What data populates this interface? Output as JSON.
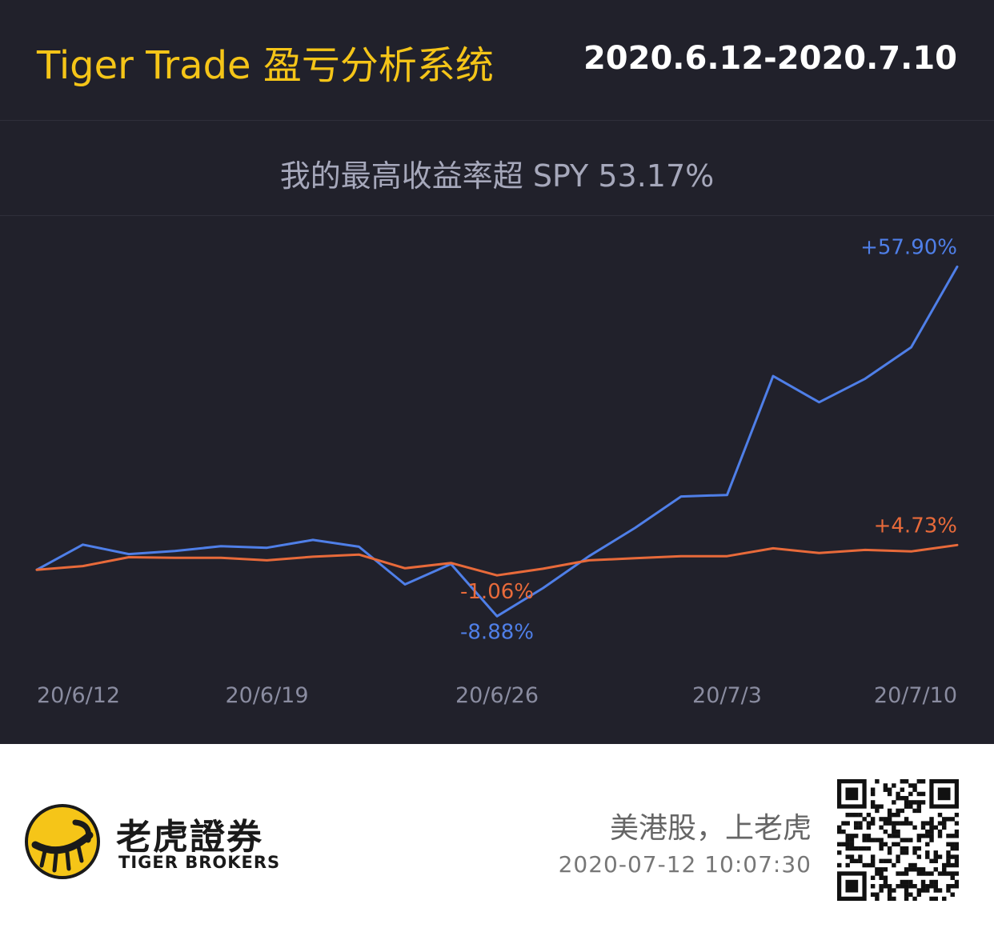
{
  "header": {
    "app_title": "Tiger Trade 盈亏分析系统",
    "date_range": "2020.6.12-2020.7.10"
  },
  "summary": "我的最高收益率超 SPY 53.17%",
  "colors": {
    "background": "#21212b",
    "portfolio_line": "#4f7fe8",
    "spy_line": "#e86a3a",
    "accent": "#f5c518",
    "axis_text": "#8a8ca0"
  },
  "chart_data": {
    "type": "line",
    "title": "",
    "xlabel": "",
    "ylabel": "",
    "x": [
      "2020-06-12",
      "2020-06-15",
      "2020-06-16",
      "2020-06-17",
      "2020-06-18",
      "2020-06-19",
      "2020-06-22",
      "2020-06-23",
      "2020-06-24",
      "2020-06-25",
      "2020-06-26",
      "2020-06-29",
      "2020-06-30",
      "2020-07-01",
      "2020-07-02",
      "2020-07-03",
      "2020-07-06",
      "2020-07-07",
      "2020-07-08",
      "2020-07-09",
      "2020-07-10"
    ],
    "xticks": [
      "20/6/12",
      "20/6/19",
      "20/6/26",
      "20/7/3",
      "20/7/10"
    ],
    "xtick_dates": [
      "2020-06-12",
      "2020-06-19",
      "2020-06-26",
      "2020-07-03",
      "2020-07-10"
    ],
    "ylim": [
      -18,
      63
    ],
    "grid": false,
    "series": [
      {
        "role": "portfolio",
        "color": "#4f7fe8",
        "values": [
          0,
          4.8,
          3.0,
          3.6,
          4.5,
          4.2,
          5.7,
          4.4,
          -2.8,
          1.1,
          -8.88,
          -3.5,
          2.6,
          8.0,
          14.0,
          14.3,
          37.0,
          32.0,
          36.5,
          42.5,
          57.9
        ],
        "labels": [
          {
            "index": 10,
            "text": "-8.88%"
          },
          {
            "index": 20,
            "text": "+57.90%"
          }
        ]
      },
      {
        "role": "spy",
        "color": "#e86a3a",
        "values": [
          0,
          0.7,
          2.4,
          2.3,
          2.3,
          1.8,
          2.5,
          2.9,
          0.3,
          1.3,
          -1.06,
          0.2,
          1.8,
          2.2,
          2.6,
          2.6,
          4.1,
          3.2,
          3.8,
          3.5,
          4.73
        ],
        "labels": [
          {
            "index": 10,
            "text": "-1.06%"
          },
          {
            "index": 20,
            "text": "+4.73%"
          }
        ]
      }
    ]
  },
  "footer": {
    "brand_cn": "老虎證券",
    "brand_en": "TIGER BROKERS",
    "slogan": "美港股，上老虎",
    "timestamp": "2020-07-12 10:07:30",
    "logo_icon": "tiger-logo-icon",
    "qr_icon": "qr-code-icon"
  }
}
